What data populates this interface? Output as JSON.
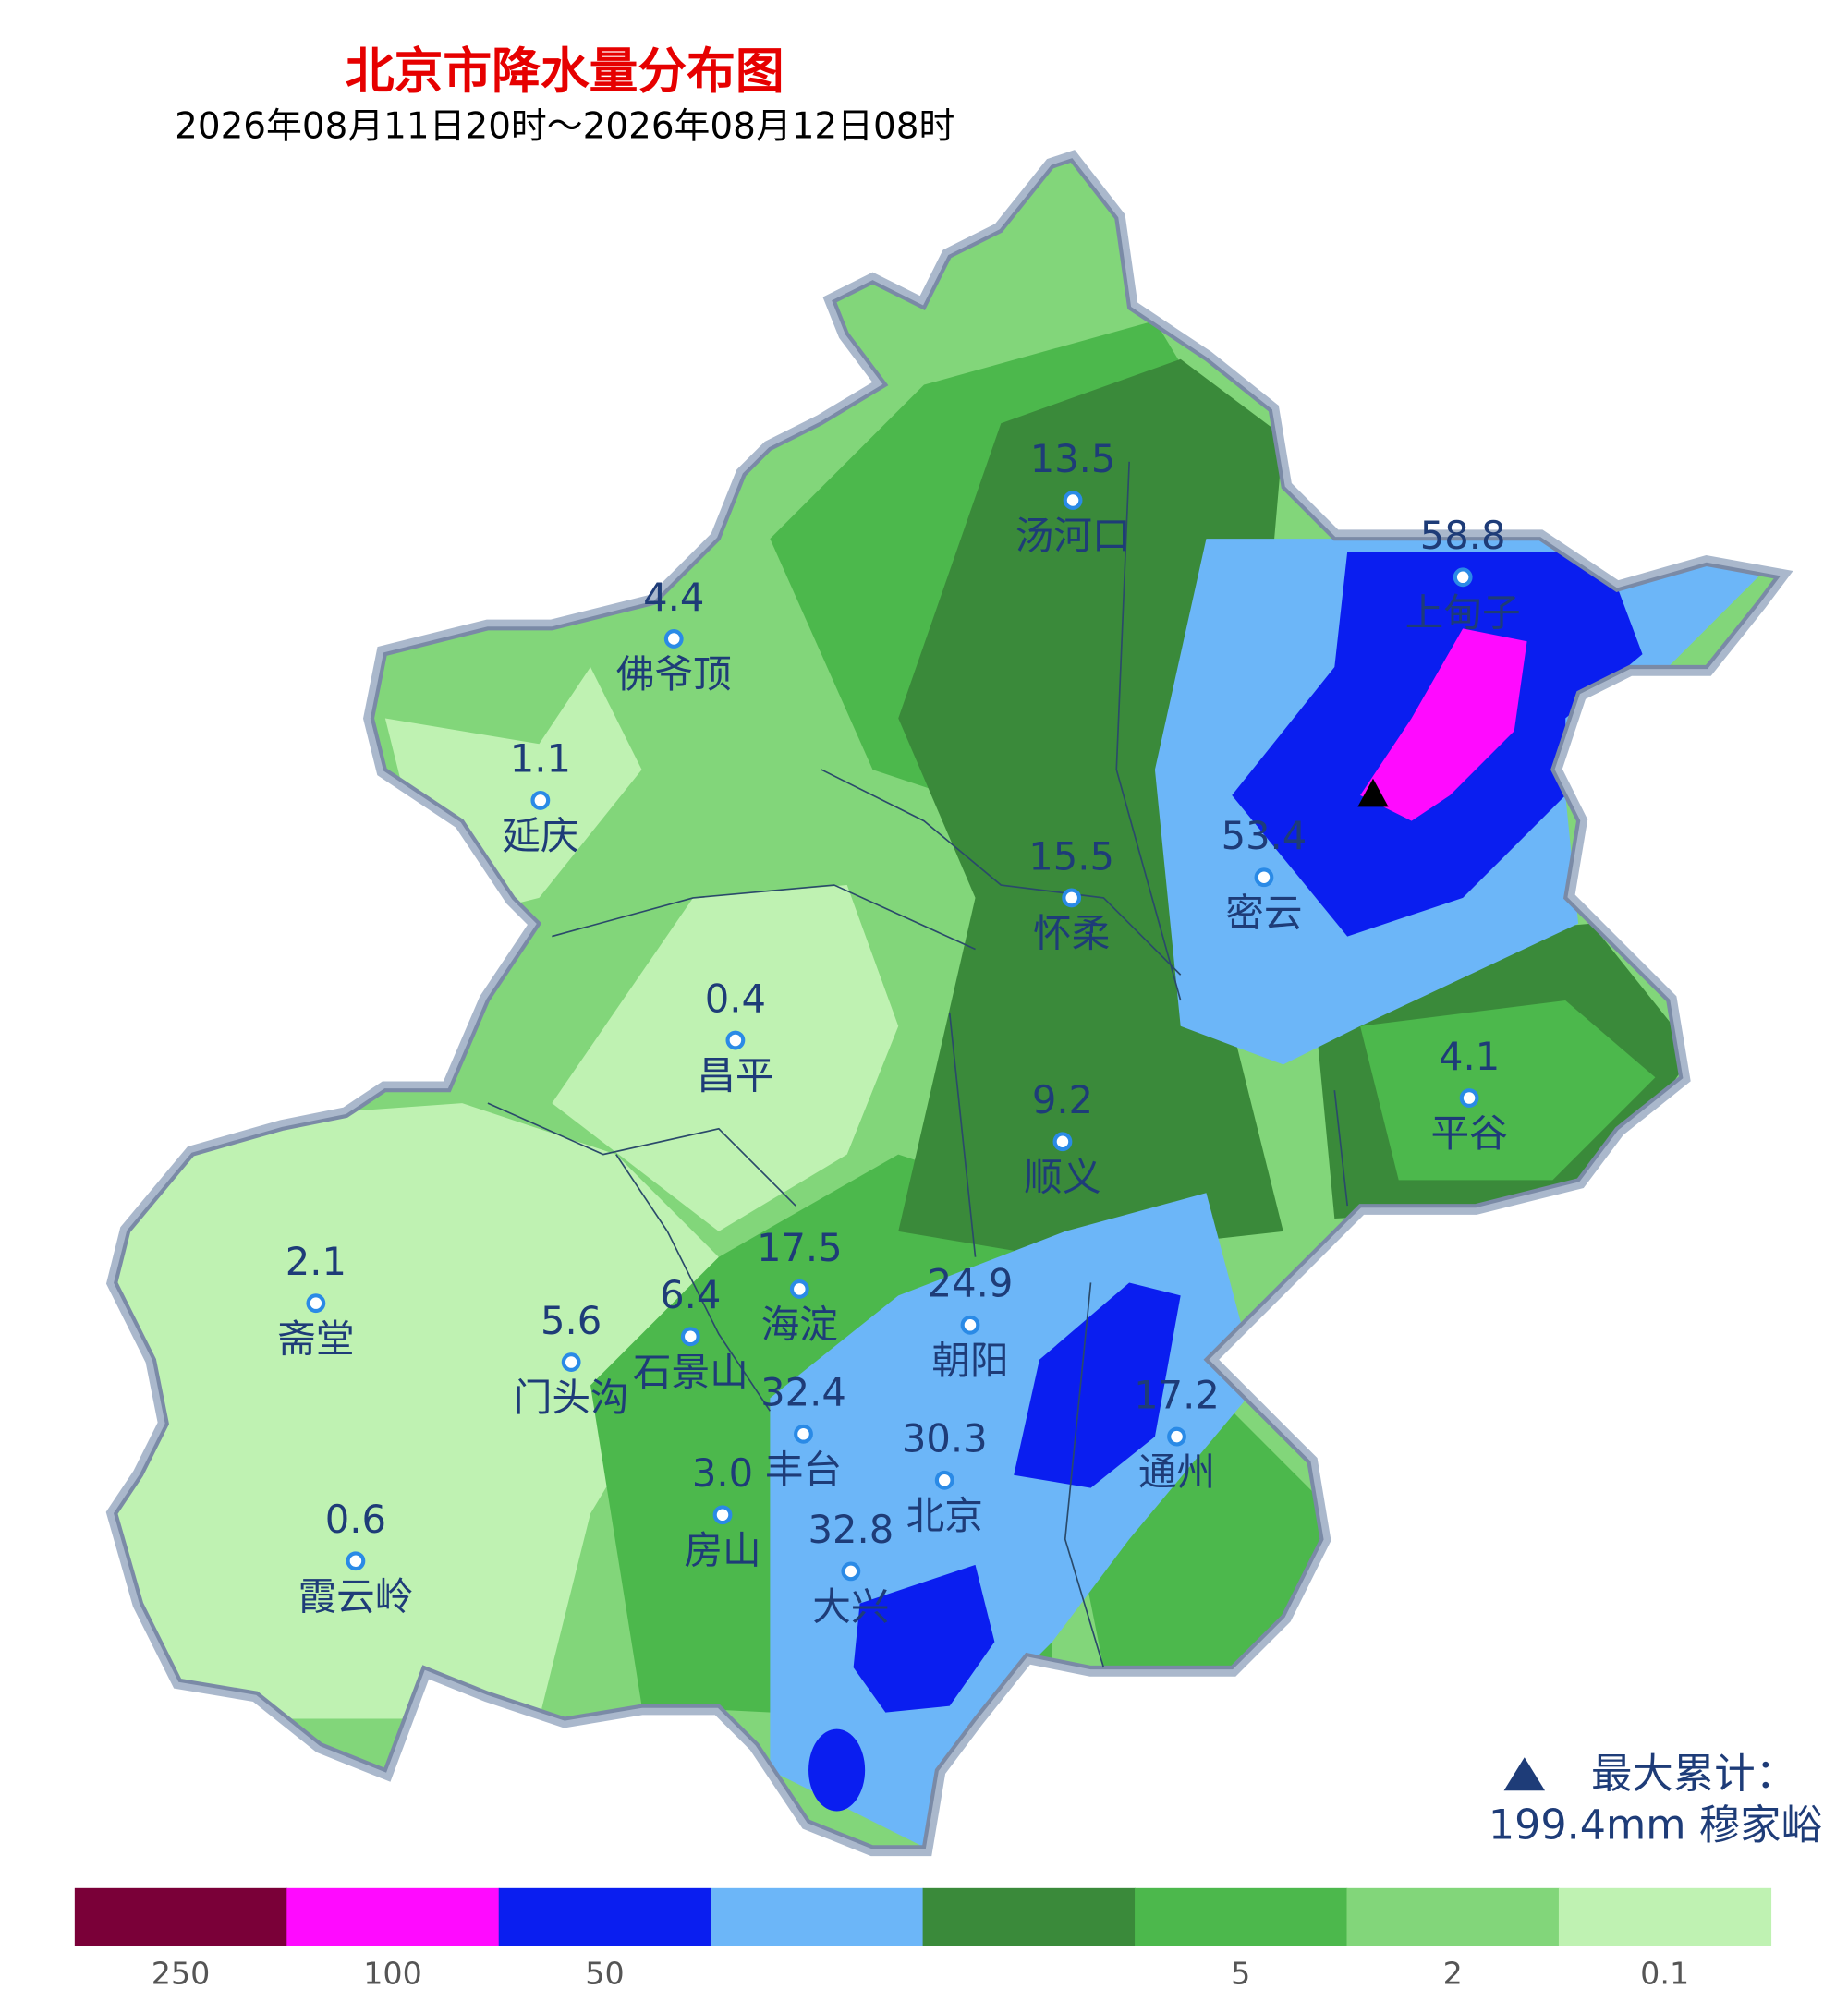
{
  "title": "北京市降水量分布图",
  "subtitle": "2026年08月11日20时～2026年08月12日08时",
  "stations": [
    {
      "name": "汤河口",
      "value": "13.5"
    },
    {
      "name": "上甸子",
      "value": "58.8"
    },
    {
      "name": "佛爷顶",
      "value": "4.4"
    },
    {
      "name": "延庆",
      "value": "1.1"
    },
    {
      "name": "密云",
      "value": "53.4"
    },
    {
      "name": "怀柔",
      "value": "15.5"
    },
    {
      "name": "昌平",
      "value": "0.4"
    },
    {
      "name": "平谷",
      "value": "4.1"
    },
    {
      "name": "顺义",
      "value": "9.2"
    },
    {
      "name": "斋堂",
      "value": "2.1"
    },
    {
      "name": "海淀",
      "value": "17.5"
    },
    {
      "name": "朝阳",
      "value": "24.9"
    },
    {
      "name": "石景山",
      "value": "6.4"
    },
    {
      "name": "门头沟",
      "value": "5.6"
    },
    {
      "name": "丰台",
      "value": "32.4"
    },
    {
      "name": "通州",
      "value": "17.2"
    },
    {
      "name": "北京",
      "value": "30.3"
    },
    {
      "name": "房山",
      "value": "3.0"
    },
    {
      "name": "霞云岭",
      "value": "0.6"
    },
    {
      "name": "大兴",
      "value": "32.8"
    }
  ],
  "max_note": {
    "label": "最大累计：",
    "value": "199.4mm 穆家峪"
  },
  "legend": {
    "items": [
      {
        "color": "#7a0038",
        "label": "250"
      },
      {
        "color": "#ff0aff",
        "label": "100"
      },
      {
        "color": "#0a1ef0",
        "label": "50"
      },
      {
        "color": "#6cb6f8"
      },
      {
        "color": "#3a8a3a"
      },
      {
        "color": "#4cb84c",
        "label": "5"
      },
      {
        "color": "#82d67a",
        "label": "2"
      },
      {
        "color": "#bff2b2",
        "label": "0.1"
      }
    ]
  }
}
